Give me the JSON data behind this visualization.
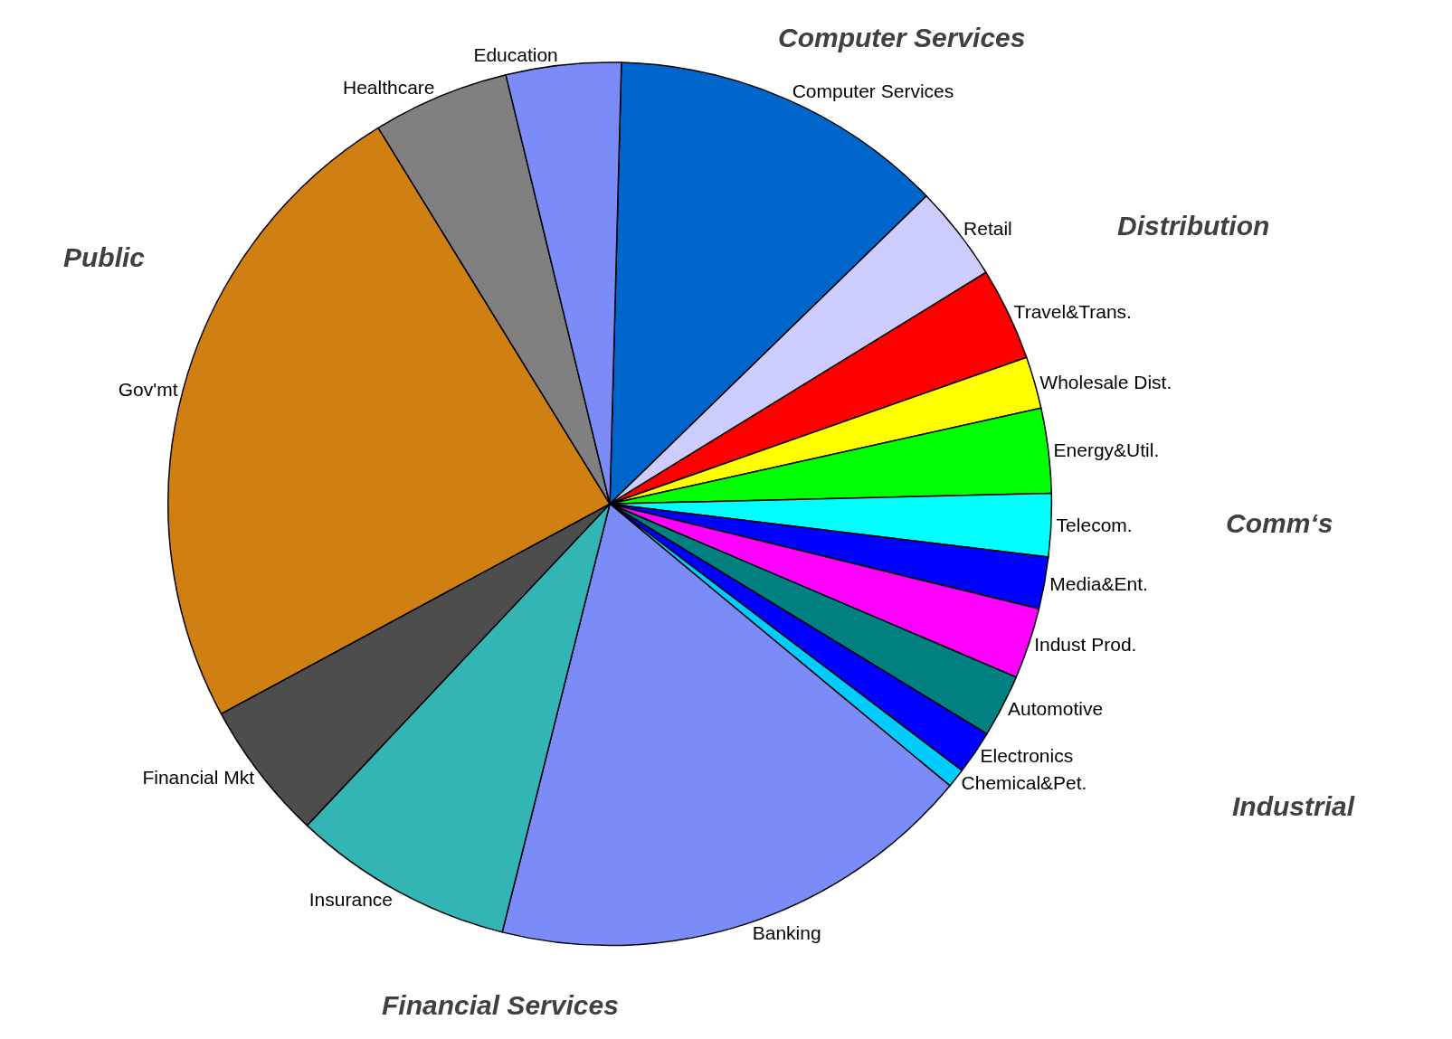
{
  "chart_data": {
    "type": "pie",
    "categories": [
      "Computer Services",
      "Retail",
      "Travel&Trans.",
      "Wholesale Dist.",
      "Energy&Util.",
      "Telecom.",
      "Media&Ent.",
      "Indust Prod.",
      "Automotive",
      "Electronics",
      "Chemical&Pet.",
      "Banking",
      "Insurance",
      "Financial Mkt",
      "Gov'mt",
      "Healthcare",
      "Education"
    ],
    "values": [
      12.3,
      3.5,
      3.4,
      1.9,
      3.1,
      2.3,
      1.9,
      2.6,
      2.3,
      1.6,
      0.7,
      17.9,
      8.1,
      5.1,
      24.1,
      5.0,
      4.2
    ],
    "colors": [
      "#0066cc",
      "#ccccff",
      "#ff0000",
      "#ffff00",
      "#00ff00",
      "#00ffff",
      "#0000ff",
      "#ff00ff",
      "#008080",
      "#0000ff",
      "#00ccff",
      "#7b8cf8",
      "#33b5b5",
      "#4d4d4d",
      "#d08012",
      "#808080",
      "#7b8cf8"
    ],
    "annotations": [
      "Computer Services",
      "Distribution",
      "Comm‘s",
      "Industrial",
      "Financial Services",
      "Public"
    ],
    "legend": false
  }
}
